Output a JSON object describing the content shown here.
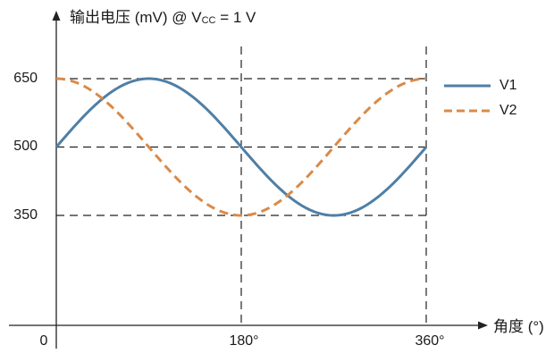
{
  "chart_data": {
    "type": "line",
    "title": "",
    "ylabel": "输出电压 (mV) @ V_CC = 1 V",
    "ylabel_parts": {
      "main": "输出电压 (mV) @ V",
      "sub": "CC",
      "tail": " = 1 V"
    },
    "xlabel": "角度 (°)",
    "x_ticks": [
      {
        "value": 0,
        "label": "0"
      },
      {
        "value": 180,
        "label": "180°"
      },
      {
        "value": 360,
        "label": "360°"
      }
    ],
    "y_ticks": [
      {
        "value": 650,
        "label": "650"
      },
      {
        "value": 500,
        "label": "500"
      },
      {
        "value": 350,
        "label": "350"
      }
    ],
    "xlim": [
      0,
      360
    ],
    "ylim": [
      250,
      650
    ],
    "grid": "dashed reference lines at y=350,500,650 and x=180,360",
    "legend_position": "right",
    "x": [
      0,
      45,
      90,
      135,
      180,
      225,
      270,
      315,
      360
    ],
    "series": [
      {
        "name": "V1",
        "style": "solid",
        "color": "#4f7fa6",
        "formula": "500 + 150*sin(angle)",
        "values": [
          500,
          606,
          650,
          606,
          500,
          394,
          350,
          394,
          500
        ]
      },
      {
        "name": "V2",
        "style": "dashed",
        "color": "#d98a48",
        "formula": "500 + 150*cos(angle)",
        "values": [
          650,
          606,
          500,
          394,
          350,
          394,
          500,
          606,
          650
        ]
      }
    ]
  },
  "axes": {
    "y_title": "输出电压 (mV) @ V",
    "y_title_sub": "CC",
    "y_title_tail": " = 1 V",
    "x_title": "角度 (°)",
    "origin_label": "0"
  },
  "legend": [
    {
      "name": "V1",
      "color": "#4f7fa6",
      "style": "solid"
    },
    {
      "name": "V2",
      "color": "#d98a48",
      "style": "dashed"
    }
  ]
}
